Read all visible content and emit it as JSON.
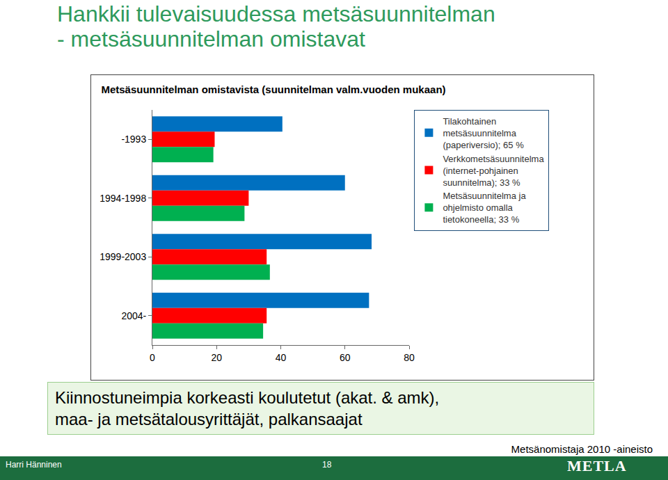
{
  "slide": {
    "title": [
      "Hankkii tulevaisuudessa metsäsuunnitelman",
      "- metsäsuunnitelman omistavat"
    ],
    "note": [
      "Kiinnostuneimpia korkeasti koulutetut (akat. & amk),",
      "maa- ja metsätalousyrittäjät, palkansaajat"
    ],
    "source": "Metsänomistaja 2010 -aineisto",
    "author": "Harri Hänninen",
    "page": "18",
    "logo": "METLA"
  },
  "chart_data": {
    "type": "bar",
    "orientation": "horizontal",
    "title": "Metsäsuunnitelman omistavista (suunnitelman valm.vuoden mukaan)",
    "categories": [
      "-1993",
      "1994-1998",
      "1999-2003",
      "2004-"
    ],
    "series": [
      {
        "name": "Tilakohtainen metsäsuunnitelma (paperiversio); 65 %",
        "color": "#0070c0",
        "values": [
          40.5,
          60,
          68.3,
          67.5
        ]
      },
      {
        "name": "Verkkometsäsuunnitelma (internet-pohjainen suunnitelma); 33 %",
        "color": "#ff0000",
        "values": [
          19.4,
          30,
          35.6,
          35.6
        ]
      },
      {
        "name": "Metsäsuunnitelma ja ohjelmisto omalla tietokoneella; 33 %",
        "color": "#00b050",
        "values": [
          19,
          28.7,
          36.6,
          34.5
        ]
      }
    ],
    "xlim": [
      0,
      80
    ],
    "xticks": [
      0,
      20,
      40,
      60,
      80
    ],
    "grid": false,
    "legend": "top right"
  }
}
